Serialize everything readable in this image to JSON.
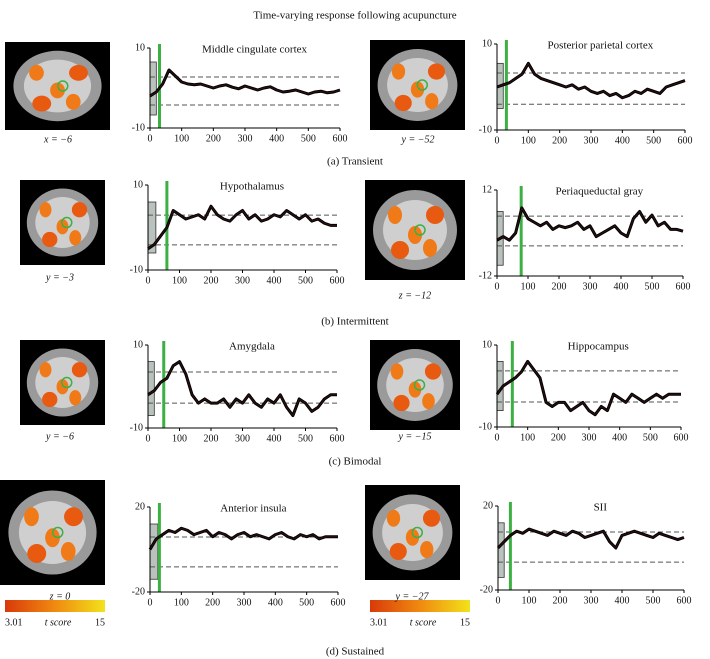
{
  "figure": {
    "title": "Time-varying response following acupuncture",
    "captions": [
      "(a)  Transient",
      "(b)  Intermittent",
      "(c)  Bimodal",
      "(d)  Sustained"
    ],
    "slices": [
      "x = −6",
      "y = −52",
      "y = −3",
      "z = −12",
      "y = −6",
      "y = −15",
      "z = 0",
      "y = −27"
    ],
    "colorbar": {
      "range": [
        3.01,
        15
      ],
      "label": "t score"
    }
  },
  "chart_data": [
    {
      "type": "line",
      "title": "Middle cingulate cortex",
      "x": [
        0,
        20,
        40,
        60,
        80,
        100,
        120,
        140,
        160,
        180,
        200,
        220,
        240,
        260,
        280,
        300,
        320,
        340,
        360,
        380,
        400,
        420,
        440,
        460,
        480,
        500,
        520,
        540,
        560,
        580,
        600
      ],
      "series": [
        {
          "color": "#2a1010",
          "values": [
            -2,
            -1,
            1,
            4.5,
            3,
            1.5,
            1,
            0.8,
            1,
            0.5,
            0,
            0.5,
            0.8,
            0.2,
            -0.2,
            0.5,
            0,
            -0.5,
            0,
            0.3,
            -0.5,
            -1,
            -0.8,
            -0.5,
            -1,
            -1.5,
            -1,
            -0.8,
            -1.2,
            -1,
            -0.5
          ]
        }
      ],
      "xlim": [
        0,
        600
      ],
      "ylim": [
        -10,
        10
      ],
      "xticks": [
        0,
        100,
        200,
        300,
        400,
        500,
        600
      ],
      "yticks": [
        -10,
        10
      ],
      "hlines": [
        2.75,
        -4.25
      ],
      "marker_x": 30,
      "shade": {
        "x": [
          0,
          20
        ],
        "y": [
          -6.75,
          6.5
        ]
      }
    },
    {
      "type": "line",
      "title": "Posterior parietal cortex",
      "x": [
        0,
        20,
        40,
        60,
        80,
        100,
        120,
        140,
        160,
        180,
        200,
        220,
        240,
        260,
        280,
        300,
        320,
        340,
        360,
        380,
        400,
        420,
        440,
        460,
        480,
        500,
        520,
        540,
        560,
        580,
        600
      ],
      "series": [
        {
          "color": "#2a1010",
          "values": [
            0,
            0.5,
            1,
            2,
            3,
            5.5,
            3,
            2,
            1.5,
            1,
            0.5,
            0,
            0.5,
            -0.5,
            0,
            -1,
            -1.5,
            -1,
            -2,
            -1.5,
            -2.5,
            -2,
            -1,
            -1.5,
            -0.5,
            -1,
            -1.5,
            0,
            0.5,
            1,
            1.5
          ]
        }
      ],
      "xlim": [
        0,
        600
      ],
      "ylim": [
        -10,
        10
      ],
      "xticks": [
        0,
        100,
        200,
        300,
        400,
        500,
        600
      ],
      "yticks": [
        -10,
        10
      ],
      "hlines": [
        3.25,
        -4
      ],
      "marker_x": 30,
      "shade": {
        "x": [
          0,
          20
        ],
        "y": [
          -5,
          5.5
        ]
      }
    },
    {
      "type": "line",
      "title": "Hypothalamus",
      "x": [
        0,
        20,
        40,
        60,
        80,
        100,
        120,
        140,
        160,
        180,
        200,
        220,
        240,
        260,
        280,
        300,
        320,
        340,
        360,
        380,
        400,
        420,
        440,
        460,
        480,
        500,
        520,
        540,
        560,
        580,
        600
      ],
      "series": [
        {
          "color": "#2a1010",
          "values": [
            -5,
            -4,
            -2,
            0,
            4,
            3,
            2,
            2.5,
            3,
            2,
            5,
            3,
            2,
            1.5,
            3,
            4,
            2,
            3,
            1.5,
            2,
            3,
            2.5,
            4,
            3,
            2,
            3,
            1.5,
            2,
            1,
            0.5,
            0.5
          ]
        }
      ],
      "xlim": [
        0,
        600
      ],
      "ylim": [
        -10,
        10
      ],
      "xticks": [
        0,
        100,
        200,
        300,
        400,
        500,
        600
      ],
      "yticks": [
        -10,
        10
      ],
      "hlines": [
        2.9,
        -4.1
      ],
      "marker_x": 60,
      "shade": {
        "x": [
          0,
          25
        ],
        "y": [
          -6,
          6
        ]
      }
    },
    {
      "type": "line",
      "title": "Periaqueductal gray",
      "x": [
        0,
        20,
        40,
        60,
        80,
        100,
        120,
        140,
        160,
        180,
        200,
        220,
        240,
        260,
        280,
        300,
        320,
        340,
        360,
        380,
        400,
        420,
        440,
        460,
        480,
        500,
        520,
        540,
        560,
        580,
        600
      ],
      "series": [
        {
          "color": "#2a1010",
          "values": [
            -2,
            -1,
            -2,
            0,
            7,
            4,
            3,
            2,
            3,
            1,
            2,
            1.5,
            2,
            3,
            1,
            2,
            -1,
            0,
            1,
            2,
            0,
            -1,
            4,
            6,
            3,
            5,
            2,
            3,
            1,
            1,
            0.5
          ]
        }
      ],
      "xlim": [
        0,
        600
      ],
      "ylim": [
        -12,
        12
      ],
      "xticks": [
        0,
        100,
        200,
        300,
        400,
        500,
        600
      ],
      "yticks": [
        -12,
        12
      ],
      "hlines": [
        4.7,
        -3.6
      ],
      "marker_x": 78,
      "shade": {
        "x": [
          0,
          20
        ],
        "y": [
          -9,
          6
        ]
      }
    },
    {
      "type": "line",
      "title": "Amygdala",
      "x": [
        0,
        20,
        40,
        60,
        80,
        100,
        120,
        140,
        160,
        180,
        200,
        220,
        240,
        260,
        280,
        300,
        320,
        340,
        360,
        380,
        400,
        420,
        440,
        460,
        480,
        500,
        520,
        540,
        560,
        580,
        600
      ],
      "series": [
        {
          "color": "#2a1010",
          "values": [
            -2,
            -1,
            1,
            2,
            5,
            6,
            3,
            -2,
            -4,
            -3,
            -4,
            -4,
            -3,
            -5,
            -3,
            -4,
            -2,
            -4,
            -5,
            -3,
            -4,
            -2,
            -5,
            -7,
            -3,
            -4,
            -6,
            -5,
            -3,
            -2,
            -2
          ]
        }
      ],
      "xlim": [
        0,
        600
      ],
      "ylim": [
        -10,
        10
      ],
      "xticks": [
        0,
        100,
        200,
        300,
        400,
        500,
        600
      ],
      "yticks": [
        -10,
        10
      ],
      "hlines": [
        3.5,
        -4
      ],
      "marker_x": 50,
      "shade": {
        "x": [
          0,
          20
        ],
        "y": [
          -7,
          6
        ]
      }
    },
    {
      "type": "line",
      "title": "Hippocampus",
      "x": [
        0,
        20,
        40,
        60,
        80,
        100,
        120,
        140,
        160,
        180,
        200,
        220,
        240,
        260,
        280,
        300,
        320,
        340,
        360,
        380,
        400,
        420,
        440,
        460,
        480,
        500,
        520,
        540,
        560,
        580,
        600
      ],
      "series": [
        {
          "color": "#2a1010",
          "values": [
            -2,
            0,
            1,
            2,
            3.5,
            6,
            4,
            2,
            -4,
            -5,
            -4,
            -4,
            -6,
            -5,
            -4,
            -6,
            -7,
            -5,
            -6,
            -2,
            -3,
            -4,
            -2,
            -3,
            -4,
            -3,
            -2,
            -3,
            -2,
            -2,
            -2
          ]
        }
      ],
      "xlim": [
        0,
        600
      ],
      "ylim": [
        -10,
        10
      ],
      "xticks": [
        0,
        100,
        200,
        300,
        400,
        500,
        600
      ],
      "yticks": [
        -10,
        10
      ],
      "hlines": [
        3.7,
        -3.9
      ],
      "marker_x": 50,
      "shade": {
        "x": [
          0,
          20
        ],
        "y": [
          -6,
          6
        ]
      }
    },
    {
      "type": "line",
      "title": "Anterior insula",
      "x": [
        0,
        20,
        40,
        60,
        80,
        100,
        120,
        140,
        160,
        180,
        200,
        220,
        240,
        260,
        280,
        300,
        320,
        340,
        360,
        380,
        400,
        420,
        440,
        460,
        480,
        500,
        520,
        540,
        560,
        580,
        600
      ],
      "series": [
        {
          "color": "#2a1010",
          "values": [
            0,
            5,
            7,
            9,
            8,
            10,
            9,
            7,
            8,
            9,
            6,
            8,
            7,
            5,
            7,
            8,
            6,
            7,
            6,
            5,
            7,
            8,
            6,
            5,
            7,
            6,
            7,
            5,
            6,
            6,
            6
          ]
        }
      ],
      "xlim": [
        0,
        600
      ],
      "ylim": [
        -20,
        20
      ],
      "xticks": [
        0,
        100,
        200,
        300,
        400,
        500,
        600
      ],
      "yticks": [
        -20,
        20
      ],
      "hlines": [
        5.9,
        -8.2
      ],
      "marker_x": 30,
      "shade": {
        "x": [
          0,
          25
        ],
        "y": [
          -14,
          12
        ]
      }
    },
    {
      "type": "line",
      "title": "SII",
      "x": [
        0,
        20,
        40,
        60,
        80,
        100,
        120,
        140,
        160,
        180,
        200,
        220,
        240,
        260,
        280,
        300,
        320,
        340,
        360,
        380,
        400,
        420,
        440,
        460,
        480,
        500,
        520,
        540,
        560,
        580,
        600
      ],
      "series": [
        {
          "color": "#2a1010",
          "values": [
            0,
            3,
            6,
            8,
            7,
            9,
            8,
            7,
            6,
            8,
            7,
            6,
            8,
            7,
            5,
            6,
            7,
            8,
            3,
            0,
            6,
            7,
            8,
            7,
            6,
            5,
            7,
            6,
            5,
            4,
            5
          ]
        }
      ],
      "xlim": [
        0,
        600
      ],
      "ylim": [
        -20,
        20
      ],
      "xticks": [
        0,
        100,
        200,
        300,
        400,
        500,
        600
      ],
      "yticks": [
        -20,
        20
      ],
      "hlines": [
        7.6,
        -6.7
      ],
      "marker_x": 40,
      "shade": {
        "x": [
          0,
          20
        ],
        "y": [
          -14,
          12
        ]
      }
    }
  ]
}
